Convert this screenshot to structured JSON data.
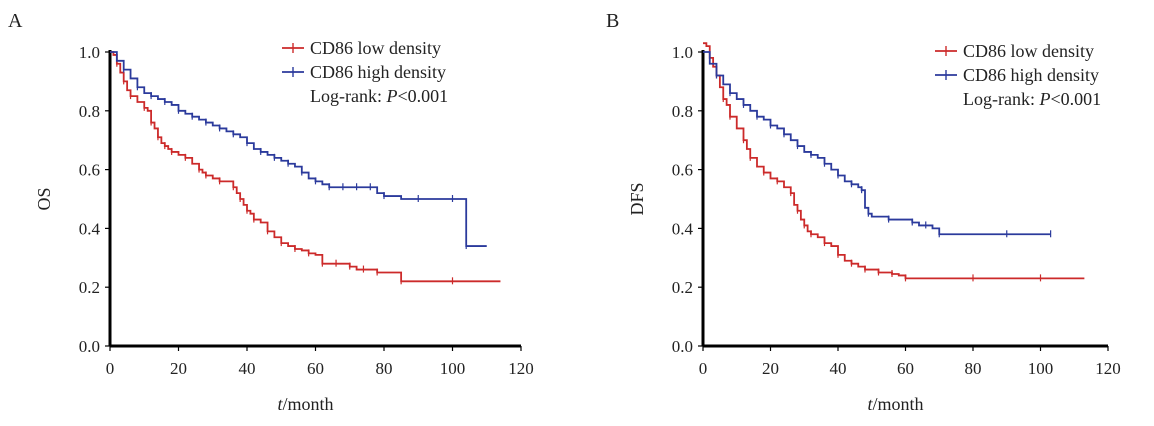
{
  "chart_data": [
    {
      "panel": "A",
      "type": "line",
      "title": "",
      "xlabel_italic": "t",
      "xlabel_rest": "/month",
      "ylabel": "OS",
      "xlim": [
        0,
        120
      ],
      "ylim": [
        0,
        1.0
      ],
      "x_ticks": [
        "0",
        "20",
        "40",
        "60",
        "80",
        "100",
        "120"
      ],
      "y_ticks": [
        "0.0",
        "0.2",
        "0.4",
        "0.6",
        "0.8",
        "1.0"
      ],
      "grid": false,
      "step": true,
      "legend_position": "top-right",
      "annotation_prefix": "Log-rank: ",
      "annotation_italic": "P",
      "annotation_suffix": "<0.001",
      "series": [
        {
          "name": "CD86 low density",
          "color": "#cc2a2a",
          "x": [
            0,
            1,
            2,
            3,
            4,
            5,
            6,
            8,
            10,
            11,
            12,
            13,
            14,
            15,
            16,
            17,
            18,
            20,
            22,
            24,
            26,
            27,
            28,
            30,
            32,
            34,
            36,
            37,
            38,
            39,
            40,
            41,
            42,
            44,
            46,
            48,
            50,
            52,
            54,
            56,
            58,
            60,
            62,
            64,
            66,
            68,
            70,
            72,
            74,
            76,
            78,
            80,
            85,
            90,
            100,
            114
          ],
          "y": [
            1.0,
            0.99,
            0.96,
            0.93,
            0.9,
            0.87,
            0.85,
            0.83,
            0.81,
            0.8,
            0.76,
            0.74,
            0.71,
            0.69,
            0.68,
            0.67,
            0.66,
            0.65,
            0.64,
            0.62,
            0.6,
            0.59,
            0.58,
            0.57,
            0.56,
            0.56,
            0.54,
            0.52,
            0.5,
            0.48,
            0.46,
            0.45,
            0.43,
            0.42,
            0.39,
            0.37,
            0.35,
            0.34,
            0.33,
            0.325,
            0.315,
            0.31,
            0.28,
            0.28,
            0.28,
            0.28,
            0.27,
            0.26,
            0.26,
            0.26,
            0.25,
            0.25,
            0.22,
            0.22,
            0.22,
            0.22
          ]
        },
        {
          "name": "CD86 high density",
          "color": "#2b3a9c",
          "x": [
            0,
            2,
            4,
            6,
            8,
            10,
            12,
            14,
            16,
            18,
            20,
            22,
            24,
            26,
            28,
            30,
            32,
            34,
            36,
            38,
            40,
            42,
            44,
            46,
            48,
            50,
            52,
            54,
            56,
            58,
            60,
            62,
            64,
            66,
            68,
            70,
            72,
            74,
            76,
            78,
            80,
            85,
            90,
            95,
            100,
            103,
            104,
            110
          ],
          "y": [
            1.0,
            0.97,
            0.94,
            0.91,
            0.88,
            0.86,
            0.85,
            0.84,
            0.83,
            0.82,
            0.8,
            0.79,
            0.78,
            0.77,
            0.76,
            0.75,
            0.74,
            0.73,
            0.72,
            0.71,
            0.69,
            0.67,
            0.66,
            0.65,
            0.64,
            0.63,
            0.62,
            0.61,
            0.59,
            0.57,
            0.56,
            0.55,
            0.54,
            0.54,
            0.54,
            0.54,
            0.54,
            0.54,
            0.54,
            0.52,
            0.51,
            0.5,
            0.5,
            0.5,
            0.5,
            0.5,
            0.34,
            0.34
          ]
        }
      ]
    },
    {
      "panel": "B",
      "type": "line",
      "title": "",
      "xlabel_italic": "t",
      "xlabel_rest": "/month",
      "ylabel": "DFS",
      "xlim": [
        0,
        120
      ],
      "ylim": [
        0,
        1.0
      ],
      "x_ticks": [
        "0",
        "20",
        "40",
        "60",
        "80",
        "100",
        "120"
      ],
      "y_ticks": [
        "0.0",
        "0.2",
        "0.4",
        "0.6",
        "0.8",
        "1.0"
      ],
      "grid": false,
      "step": true,
      "legend_position": "top-right",
      "annotation_prefix": "Log-rank: ",
      "annotation_italic": "P",
      "annotation_suffix": "<0.001",
      "series": [
        {
          "name": "CD86 low density",
          "color": "#cc2a2a",
          "x": [
            0,
            1,
            2,
            3,
            4,
            5,
            6,
            7,
            8,
            10,
            12,
            13,
            14,
            16,
            18,
            20,
            22,
            24,
            26,
            27,
            28,
            29,
            30,
            31,
            32,
            34,
            36,
            38,
            40,
            42,
            44,
            46,
            48,
            50,
            52,
            54,
            56,
            58,
            60,
            70,
            80,
            90,
            100,
            113
          ],
          "y": [
            1.03,
            1.02,
            0.98,
            0.95,
            0.92,
            0.88,
            0.84,
            0.82,
            0.78,
            0.74,
            0.7,
            0.67,
            0.64,
            0.61,
            0.59,
            0.57,
            0.56,
            0.54,
            0.52,
            0.48,
            0.46,
            0.43,
            0.41,
            0.39,
            0.38,
            0.37,
            0.35,
            0.34,
            0.31,
            0.29,
            0.28,
            0.27,
            0.26,
            0.26,
            0.25,
            0.25,
            0.245,
            0.24,
            0.23,
            0.23,
            0.23,
            0.23,
            0.23,
            0.23
          ]
        },
        {
          "name": "CD86 high density",
          "color": "#2b3a9c",
          "x": [
            0,
            2,
            4,
            6,
            8,
            10,
            12,
            14,
            16,
            18,
            20,
            22,
            24,
            26,
            28,
            30,
            32,
            34,
            36,
            38,
            40,
            42,
            44,
            46,
            47,
            48,
            49,
            50,
            55,
            60,
            62,
            64,
            66,
            68,
            70,
            80,
            90,
            100,
            103
          ],
          "y": [
            1.0,
            0.96,
            0.92,
            0.89,
            0.86,
            0.84,
            0.82,
            0.8,
            0.78,
            0.77,
            0.75,
            0.74,
            0.72,
            0.7,
            0.68,
            0.66,
            0.65,
            0.64,
            0.62,
            0.6,
            0.58,
            0.56,
            0.55,
            0.54,
            0.53,
            0.47,
            0.45,
            0.44,
            0.43,
            0.43,
            0.42,
            0.41,
            0.41,
            0.4,
            0.38,
            0.38,
            0.38,
            0.38,
            0.38
          ]
        }
      ]
    }
  ]
}
